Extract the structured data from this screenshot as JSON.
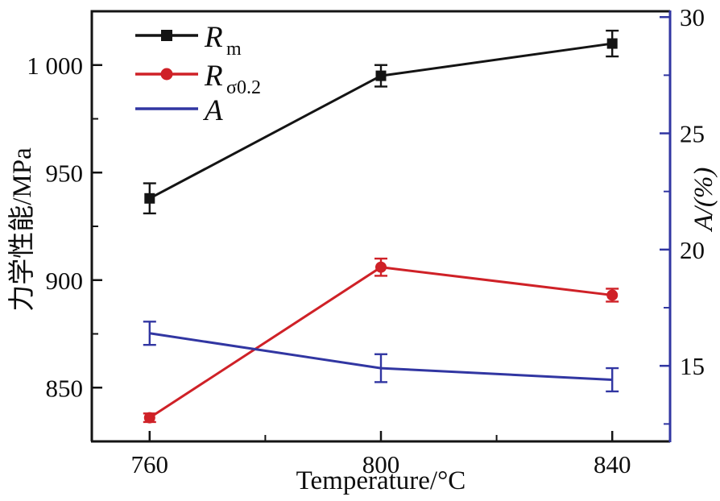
{
  "figure": {
    "background": "#ffffff"
  },
  "chart_data": {
    "type": "line",
    "title": "",
    "xlabel": "Temperature/°C",
    "ylabel_left": "力学性能/MPa",
    "ylabel_right": "A/(%)",
    "x": [
      760,
      800,
      840
    ],
    "xlim": [
      750,
      850
    ],
    "ylim_left": [
      825,
      1025
    ],
    "ylim_right": [
      11.75,
      30.25
    ],
    "grid": false,
    "legend_position": "top-left",
    "axis_color_left": "#141414",
    "axis_color_right": "#3136a2",
    "x_major_ticks": [
      760,
      800,
      840
    ],
    "x_minor_ticks": [
      780,
      820
    ],
    "x_tick_labels": [
      "760",
      "800",
      "840"
    ],
    "y_left_major_ticks": [
      850,
      900,
      950,
      1000
    ],
    "y_left_minor_ticks": [
      875,
      925,
      975
    ],
    "y_left_tick_labels": [
      "850",
      "900",
      "950",
      "1 000"
    ],
    "y_right_major_ticks": [
      15,
      20,
      25,
      30
    ],
    "y_right_minor_ticks": [
      12.5,
      17.5,
      22.5,
      27.5
    ],
    "y_right_tick_labels": [
      "15",
      "20",
      "25",
      "30"
    ],
    "series": [
      {
        "id": "Rm",
        "legend_main": "R",
        "legend_sub": "m",
        "axis": "left",
        "color": "#141414",
        "marker": "square",
        "values": [
          938,
          995,
          1010
        ],
        "errors": [
          7,
          5,
          6
        ]
      },
      {
        "id": "Rsigma02",
        "legend_main": "R",
        "legend_sub": "σ0.2",
        "axis": "left",
        "color": "#cf2127",
        "marker": "circle",
        "values": [
          836,
          906,
          893
        ],
        "errors": [
          2,
          4,
          3
        ]
      },
      {
        "id": "A",
        "legend_main": "A",
        "legend_sub": "",
        "axis": "right",
        "color": "#3136a2",
        "marker": "none",
        "values": [
          16.4,
          14.9,
          14.4
        ],
        "errors": [
          0.5,
          0.6,
          0.5
        ]
      }
    ]
  }
}
